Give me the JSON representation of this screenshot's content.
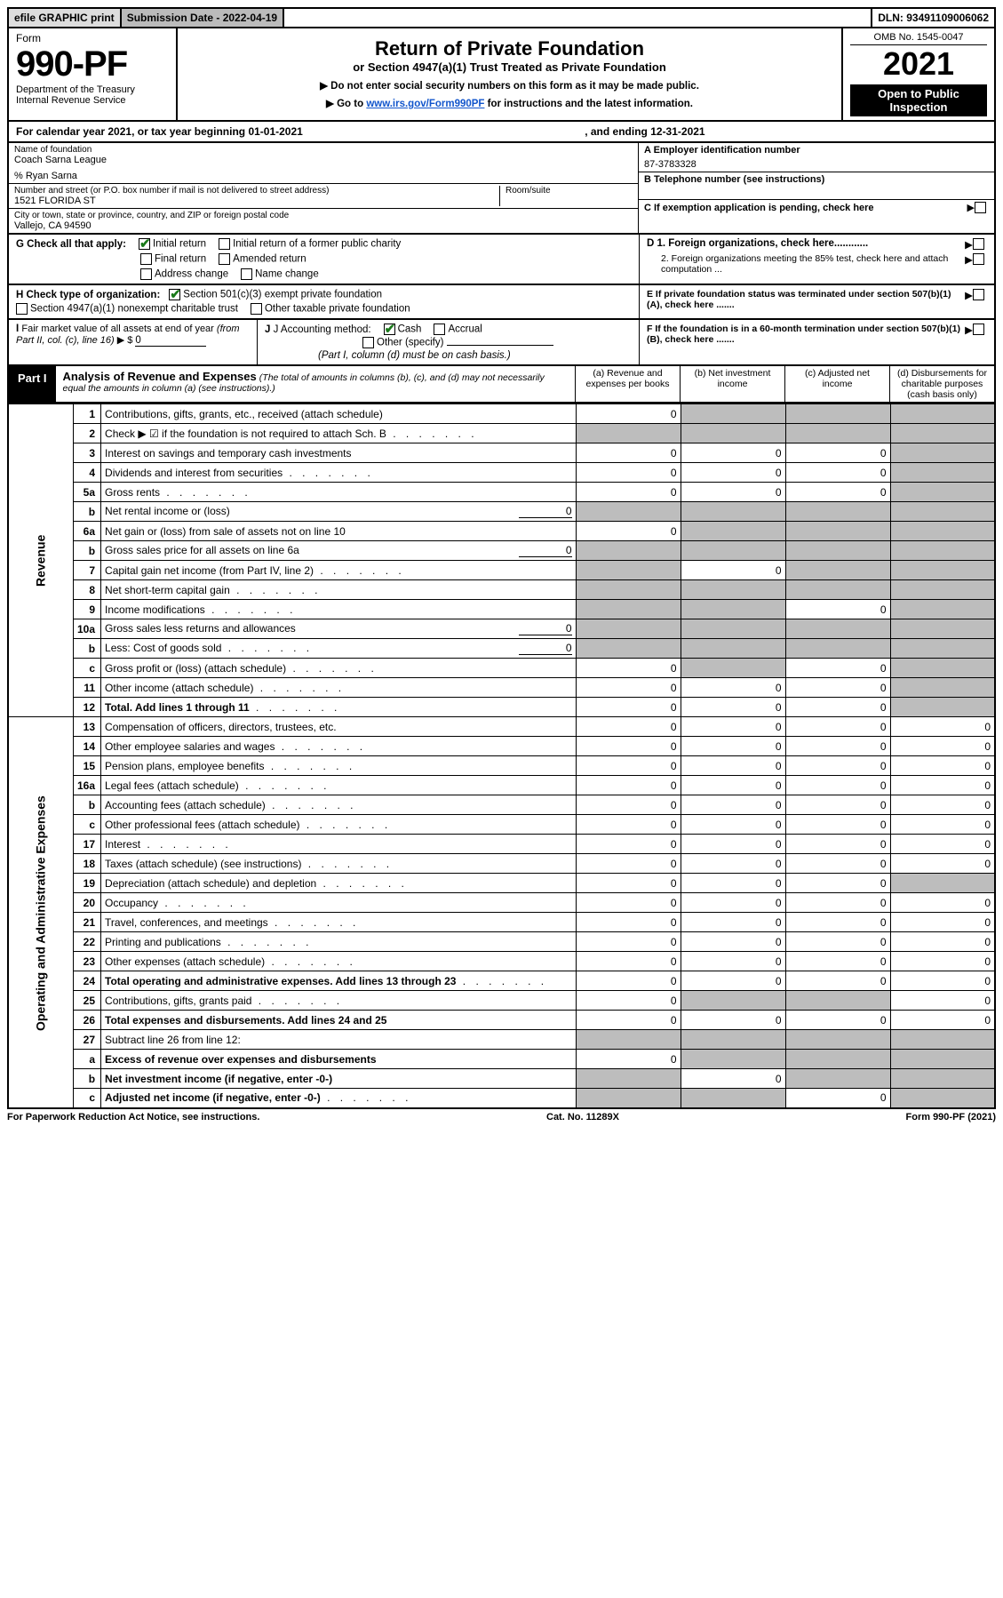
{
  "topbar": {
    "efile": "efile GRAPHIC print",
    "subdate_label": "Submission Date - 2022-04-19",
    "dln": "DLN: 93491109006062"
  },
  "header": {
    "form_word": "Form",
    "form_no": "990-PF",
    "dept": "Department of the Treasury",
    "irs": "Internal Revenue Service",
    "title": "Return of Private Foundation",
    "subtitle": "or Section 4947(a)(1) Trust Treated as Private Foundation",
    "instr1": "▶ Do not enter social security numbers on this form as it may be made public.",
    "instr2": "▶ Go to www.irs.gov/Form990PF for instructions and the latest information.",
    "link_text": "www.irs.gov/Form990PF",
    "omb": "OMB No. 1545-0047",
    "year": "2021",
    "opento": "Open to Public Inspection"
  },
  "calyear": {
    "prefix": "For calendar year 2021, or tax year beginning 01-01-2021",
    "ending": ", and ending 12-31-2021"
  },
  "entity": {
    "name_label": "Name of foundation",
    "name": "Coach Sarna League",
    "care_of": "% Ryan Sarna",
    "street_label": "Number and street (or P.O. box number if mail is not delivered to street address)",
    "street": "1521 FLORIDA ST",
    "room_label": "Room/suite",
    "city_label": "City or town, state or province, country, and ZIP or foreign postal code",
    "city": "Vallejo, CA  94590",
    "ein_label": "A Employer identification number",
    "ein": "87-3783328",
    "phone_label": "B Telephone number (see instructions)",
    "c_label": "C If exemption application is pending, check here",
    "d1_label": "D 1. Foreign organizations, check here............",
    "d2_label": "2. Foreign organizations meeting the 85% test, check here and attach computation ...",
    "e_label": "E  If private foundation status was terminated under section 507(b)(1)(A), check here .......",
    "f_label": "F  If the foundation is in a 60-month termination under section 507(b)(1)(B), check here .......",
    "g_label": "G Check all that apply:",
    "g_initial": "Initial return",
    "g_initial_former": "Initial return of a former public charity",
    "g_final": "Final return",
    "g_amended": "Amended return",
    "g_address": "Address change",
    "g_name": "Name change",
    "h_label": "H Check type of organization:",
    "h_501c3": "Section 501(c)(3) exempt private foundation",
    "h_4947": "Section 4947(a)(1) nonexempt charitable trust",
    "h_other": "Other taxable private foundation",
    "i_label": "I Fair market value of all assets at end of year (from Part II, col. (c), line 16) ▶ $",
    "i_value": "0",
    "j_label": "J Accounting method:",
    "j_cash": "Cash",
    "j_accrual": "Accrual",
    "j_other": "Other (specify)",
    "j_note": "(Part I, column (d) must be on cash basis.)"
  },
  "part1": {
    "badge": "Part I",
    "title": "Analysis of Revenue and Expenses",
    "note": "(The total of amounts in columns (b), (c), and (d) may not necessarily equal the amounts in column (a) (see instructions).)",
    "col_a": "(a)   Revenue and expenses per books",
    "col_b": "(b)   Net investment income",
    "col_c": "(c)   Adjusted net income",
    "col_d": "(d)   Disbursements for charitable purposes (cash basis only)"
  },
  "side_revenue": "Revenue",
  "side_expenses": "Operating and Administrative Expenses",
  "rows": [
    {
      "ln": "1",
      "desc": "Contributions, gifts, grants, etc., received (attach schedule)",
      "a": "0",
      "b": "",
      "c": "",
      "d": "",
      "b_sh": true,
      "c_sh": true,
      "d_sh": true
    },
    {
      "ln": "2",
      "desc": "Check ▶ ☑ if the foundation is not required to attach Sch. B",
      "dots": true,
      "a": "",
      "b": "",
      "c": "",
      "d": "",
      "b_sh": true,
      "c_sh": true,
      "d_sh": true,
      "a_sh": true
    },
    {
      "ln": "3",
      "desc": "Interest on savings and temporary cash investments",
      "a": "0",
      "b": "0",
      "c": "0",
      "d": "",
      "d_sh": true
    },
    {
      "ln": "4",
      "desc": "Dividends and interest from securities",
      "dots": true,
      "a": "0",
      "b": "0",
      "c": "0",
      "d": "",
      "d_sh": true
    },
    {
      "ln": "5a",
      "desc": "Gross rents",
      "dots": true,
      "a": "0",
      "b": "0",
      "c": "0",
      "d": "",
      "d_sh": true
    },
    {
      "ln": "b",
      "desc": "Net rental income or (loss)",
      "inline": "0",
      "a": "",
      "b": "",
      "c": "",
      "d": "",
      "a_sh": true,
      "b_sh": true,
      "c_sh": true,
      "d_sh": true
    },
    {
      "ln": "6a",
      "desc": "Net gain or (loss) from sale of assets not on line 10",
      "a": "0",
      "b": "",
      "c": "",
      "d": "",
      "b_sh": true,
      "c_sh": true,
      "d_sh": true
    },
    {
      "ln": "b",
      "desc": "Gross sales price for all assets on line 6a",
      "inline": "0",
      "a": "",
      "b": "",
      "c": "",
      "d": "",
      "a_sh": true,
      "b_sh": true,
      "c_sh": true,
      "d_sh": true
    },
    {
      "ln": "7",
      "desc": "Capital gain net income (from Part IV, line 2)",
      "dots": true,
      "a": "",
      "b": "0",
      "c": "",
      "d": "",
      "a_sh": true,
      "c_sh": true,
      "d_sh": true
    },
    {
      "ln": "8",
      "desc": "Net short-term capital gain",
      "dots": true,
      "a": "",
      "b": "",
      "c": "",
      "d": "",
      "a_sh": true,
      "b_sh": true,
      "c_sh": true,
      "d_sh": true
    },
    {
      "ln": "9",
      "desc": "Income modifications",
      "dots": true,
      "a": "",
      "b": "",
      "c": "0",
      "d": "",
      "a_sh": true,
      "b_sh": true,
      "d_sh": true
    },
    {
      "ln": "10a",
      "desc": "Gross sales less returns and allowances",
      "inline": "0",
      "a": "",
      "b": "",
      "c": "",
      "d": "",
      "a_sh": true,
      "b_sh": true,
      "c_sh": true,
      "d_sh": true
    },
    {
      "ln": "b",
      "desc": "Less: Cost of goods sold",
      "dots": true,
      "inline": "0",
      "a": "",
      "b": "",
      "c": "",
      "d": "",
      "a_sh": true,
      "b_sh": true,
      "c_sh": true,
      "d_sh": true
    },
    {
      "ln": "c",
      "desc": "Gross profit or (loss) (attach schedule)",
      "dots": true,
      "a": "0",
      "b": "",
      "c": "0",
      "d": "",
      "b_sh": true,
      "d_sh": true
    },
    {
      "ln": "11",
      "desc": "Other income (attach schedule)",
      "dots": true,
      "a": "0",
      "b": "0",
      "c": "0",
      "d": "",
      "d_sh": true
    },
    {
      "ln": "12",
      "desc": "Total. Add lines 1 through 11",
      "dots": true,
      "bold": true,
      "a": "0",
      "b": "0",
      "c": "0",
      "d": "",
      "d_sh": true
    },
    {
      "ln": "13",
      "desc": "Compensation of officers, directors, trustees, etc.",
      "a": "0",
      "b": "0",
      "c": "0",
      "d": "0"
    },
    {
      "ln": "14",
      "desc": "Other employee salaries and wages",
      "dots": true,
      "a": "0",
      "b": "0",
      "c": "0",
      "d": "0"
    },
    {
      "ln": "15",
      "desc": "Pension plans, employee benefits",
      "dots": true,
      "a": "0",
      "b": "0",
      "c": "0",
      "d": "0"
    },
    {
      "ln": "16a",
      "desc": "Legal fees (attach schedule)",
      "dots": true,
      "a": "0",
      "b": "0",
      "c": "0",
      "d": "0"
    },
    {
      "ln": "b",
      "desc": "Accounting fees (attach schedule)",
      "dots": true,
      "a": "0",
      "b": "0",
      "c": "0",
      "d": "0"
    },
    {
      "ln": "c",
      "desc": "Other professional fees (attach schedule)",
      "dots": true,
      "a": "0",
      "b": "0",
      "c": "0",
      "d": "0"
    },
    {
      "ln": "17",
      "desc": "Interest",
      "dots": true,
      "a": "0",
      "b": "0",
      "c": "0",
      "d": "0"
    },
    {
      "ln": "18",
      "desc": "Taxes (attach schedule) (see instructions)",
      "dots": true,
      "a": "0",
      "b": "0",
      "c": "0",
      "d": "0"
    },
    {
      "ln": "19",
      "desc": "Depreciation (attach schedule) and depletion",
      "dots": true,
      "a": "0",
      "b": "0",
      "c": "0",
      "d": "",
      "d_sh": true
    },
    {
      "ln": "20",
      "desc": "Occupancy",
      "dots": true,
      "a": "0",
      "b": "0",
      "c": "0",
      "d": "0"
    },
    {
      "ln": "21",
      "desc": "Travel, conferences, and meetings",
      "dots": true,
      "a": "0",
      "b": "0",
      "c": "0",
      "d": "0"
    },
    {
      "ln": "22",
      "desc": "Printing and publications",
      "dots": true,
      "a": "0",
      "b": "0",
      "c": "0",
      "d": "0"
    },
    {
      "ln": "23",
      "desc": "Other expenses (attach schedule)",
      "dots": true,
      "a": "0",
      "b": "0",
      "c": "0",
      "d": "0"
    },
    {
      "ln": "24",
      "desc": "Total operating and administrative expenses. Add lines 13 through 23",
      "dots": true,
      "bold": true,
      "a": "0",
      "b": "0",
      "c": "0",
      "d": "0"
    },
    {
      "ln": "25",
      "desc": "Contributions, gifts, grants paid",
      "dots": true,
      "a": "0",
      "b": "",
      "c": "",
      "d": "0",
      "b_sh": true,
      "c_sh": true
    },
    {
      "ln": "26",
      "desc": "Total expenses and disbursements. Add lines 24 and 25",
      "bold": true,
      "a": "0",
      "b": "0",
      "c": "0",
      "d": "0"
    },
    {
      "ln": "27",
      "desc": "Subtract line 26 from line 12:",
      "a": "",
      "b": "",
      "c": "",
      "d": "",
      "a_sh": true,
      "b_sh": true,
      "c_sh": true,
      "d_sh": true
    },
    {
      "ln": "a",
      "desc": "Excess of revenue over expenses and disbursements",
      "bold": true,
      "a": "0",
      "b": "",
      "c": "",
      "d": "",
      "b_sh": true,
      "c_sh": true,
      "d_sh": true
    },
    {
      "ln": "b",
      "desc": "Net investment income (if negative, enter -0-)",
      "bold": true,
      "a": "",
      "b": "0",
      "c": "",
      "d": "",
      "a_sh": true,
      "c_sh": true,
      "d_sh": true
    },
    {
      "ln": "c",
      "desc": "Adjusted net income (if negative, enter -0-)",
      "dots": true,
      "bold": true,
      "a": "",
      "b": "",
      "c": "0",
      "d": "",
      "a_sh": true,
      "b_sh": true,
      "d_sh": true
    }
  ],
  "footer": {
    "left": "For Paperwork Reduction Act Notice, see instructions.",
    "mid": "Cat. No. 11289X",
    "right": "Form 990-PF (2021)"
  }
}
